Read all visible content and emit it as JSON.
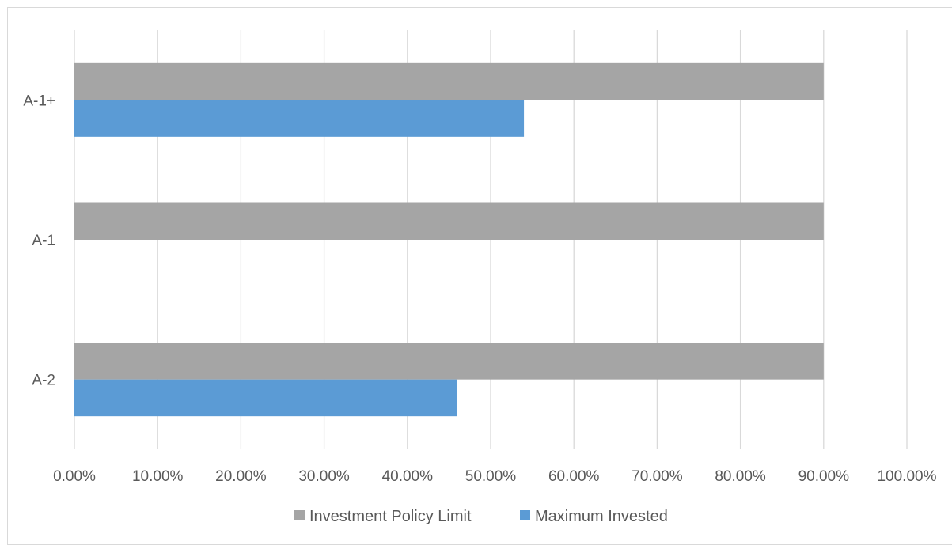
{
  "chart_data": {
    "type": "bar",
    "orientation": "horizontal",
    "categories": [
      "A-1+",
      "A-1",
      "A-2"
    ],
    "series": [
      {
        "name": "Investment Policy Limit",
        "values": [
          0.9,
          0.9,
          0.9
        ],
        "color": "#a5a5a5"
      },
      {
        "name": "Maximum Invested",
        "values": [
          0.54,
          0.0,
          0.46
        ],
        "color": "#5b9bd5"
      }
    ],
    "xlim": [
      0,
      1
    ],
    "xticks": [
      "0.00%",
      "10.00%",
      "20.00%",
      "30.00%",
      "40.00%",
      "50.00%",
      "60.00%",
      "70.00%",
      "80.00%",
      "90.00%",
      "100.00%"
    ],
    "grid": true,
    "legend_position": "bottom"
  }
}
